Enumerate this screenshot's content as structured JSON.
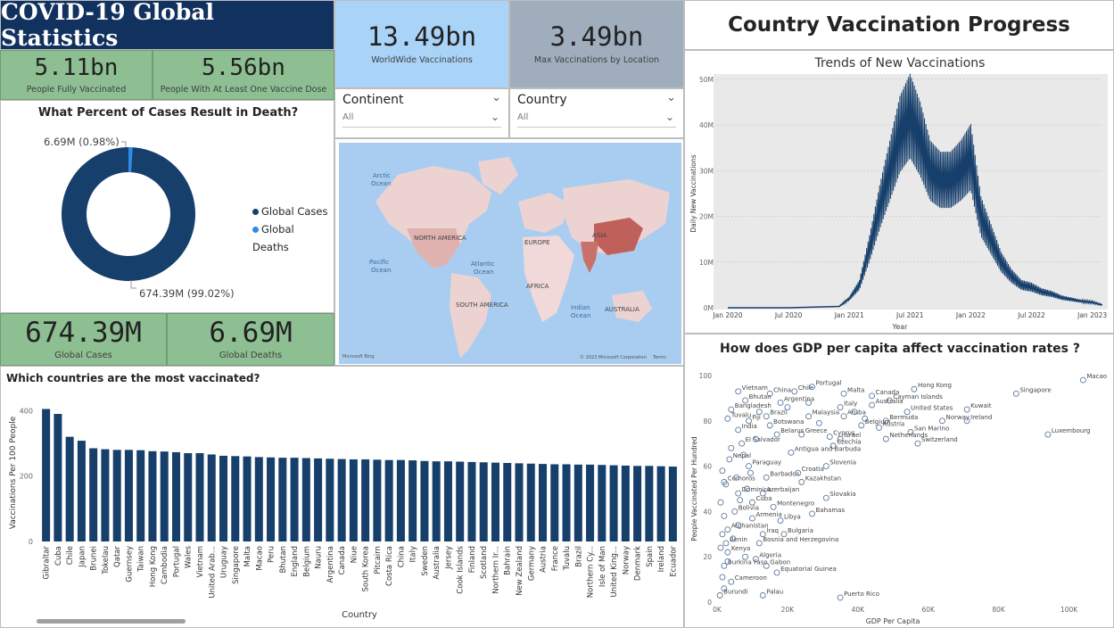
{
  "header": {
    "title": "COVID-19 Global Statistics"
  },
  "kpis": {
    "fully_vaccinated": {
      "value": "5.11bn",
      "label": "People Fully Vaccinated"
    },
    "one_dose": {
      "value": "5.56bn",
      "label": "People With At Least One Vaccine Dose"
    },
    "worldwide": {
      "value": "13.49bn",
      "label": "WorldWide Vaccinations"
    },
    "max_location": {
      "value": "3.49bn",
      "label": "Max Vaccinations by Location"
    },
    "global_cases": {
      "value": "674.39M",
      "label": "Global Cases"
    },
    "global_deaths": {
      "value": "6.69M",
      "label": "Global Deaths"
    }
  },
  "slicers": {
    "continent": {
      "title": "Continent",
      "value": "All"
    },
    "country": {
      "title": "Country",
      "value": "All"
    }
  },
  "donut": {
    "title": "What Percent of Cases Result in Death?",
    "deaths_label": "6.69M (0.98%)",
    "cases_label": "674.39M (99.02%)",
    "legend": [
      "Global Cases",
      "Global Deaths"
    ]
  },
  "map": {
    "labels": [
      "Arctic",
      "Ocean",
      "NORTH AMERICA",
      "EUROPE",
      "ASIA",
      "Pacific",
      "Ocean",
      "Atlantic",
      "Ocean",
      "AFRICA",
      "SOUTH AMERICA",
      "Indian",
      "Ocean",
      "AUSTRALIA"
    ],
    "attribution": "© 2023 Microsoft Corporation",
    "terms": "Terms",
    "brand": "Microsoft Bing"
  },
  "dashboard": {
    "title": "Country Vaccination Progress"
  },
  "colors": {
    "banner": "#11315f",
    "kpi_green": "#8dbf92",
    "kpi_blue": "#a9d3f7",
    "kpi_grey": "#9fadbd",
    "series": "#163f6b",
    "deaths": "#2f8ae6"
  },
  "chart_data": [
    {
      "type": "pie",
      "title": "What Percent of Cases Result in Death?",
      "categories": [
        "Global Cases",
        "Global Deaths"
      ],
      "values": [
        674.39,
        6.69
      ],
      "legend": "right"
    },
    {
      "type": "line",
      "title": "Trends of New Vaccinations",
      "xlabel": "Year",
      "ylabel": "Daily New Vaccinations",
      "x_ticks": [
        "Jan 2020",
        "Jul 2020",
        "Jan 2021",
        "Jul 2021",
        "Jan 2022",
        "Jul 2022",
        "Jan 2023"
      ],
      "y_ticks": [
        "0M",
        "10M",
        "20M",
        "30M",
        "40M",
        "50M"
      ],
      "ylim": [
        0,
        50
      ],
      "x": [
        "Jan 2020",
        "Jul 2020",
        "Dec 2020",
        "Jan 2021",
        "Feb 2021",
        "Mar 2021",
        "Apr 2021",
        "May 2021",
        "Jun 2021",
        "Jul 2021",
        "Aug 2021",
        "Sep 2021",
        "Oct 2021",
        "Nov 2021",
        "Dec 2021",
        "Jan 2022",
        "Feb 2022",
        "Mar 2022",
        "Apr 2022",
        "May 2022",
        "Jun 2022",
        "Jul 2022",
        "Aug 2022",
        "Sep 2022",
        "Oct 2022",
        "Nov 2022",
        "Dec 2022",
        "Jan 2023",
        "Feb 2023"
      ],
      "series": [
        {
          "values": [
            0,
            0,
            0.3,
            2,
            5,
            13,
            22,
            30,
            38,
            42,
            37,
            30,
            28,
            28,
            30,
            33,
            20,
            15,
            10,
            7,
            5,
            4.5,
            3.5,
            3,
            2.2,
            1.8,
            1.4,
            1.2,
            0.6
          ]
        }
      ],
      "grid": true
    },
    {
      "type": "bar",
      "title": "Which countries are the most vaccinated?",
      "xlabel": "Country",
      "ylabel": "Vaccinations Per 100 People",
      "y_ticks": [
        "0",
        "200",
        "400"
      ],
      "ylim": [
        0,
        420
      ],
      "categories": [
        "Gibraltar",
        "Cuba",
        "Chile",
        "Japan",
        "Brunei",
        "Tokelau",
        "Qatar",
        "Guernsey",
        "Taiwan",
        "Hong Kong",
        "Cambodia",
        "Portugal",
        "Wales",
        "Vietnam",
        "United Arab...",
        "Uruguay",
        "Singapore",
        "Malta",
        "Macao",
        "Peru",
        "Bhutan",
        "England",
        "Belgium",
        "Nauru",
        "Argentina",
        "Canada",
        "Niue",
        "South Korea",
        "Pitcairn",
        "Costa Rica",
        "China",
        "Italy",
        "Sweden",
        "Australia",
        "Jersey",
        "Cook Islands",
        "Finland",
        "Scotland",
        "Northern Ir...",
        "Bahrain",
        "New Zealand",
        "Germany",
        "Austria",
        "France",
        "Tuvalu",
        "Brazil",
        "Northern Cy...",
        "Isle of Man",
        "United King...",
        "Norway",
        "Denmark",
        "Spain",
        "Ireland",
        "Ecuador"
      ],
      "values": [
        405,
        390,
        320,
        308,
        285,
        282,
        280,
        280,
        279,
        276,
        275,
        273,
        270,
        270,
        266,
        262,
        261,
        260,
        258,
        257,
        256,
        256,
        255,
        254,
        253,
        252,
        251,
        251,
        250,
        249,
        249,
        248,
        246,
        245,
        245,
        244,
        243,
        242,
        241,
        240,
        239,
        238,
        237,
        236,
        236,
        235,
        235,
        234,
        233,
        232,
        231,
        231,
        230,
        229
      ]
    },
    {
      "type": "scatter",
      "title": "How does GDP per capita affect vaccination rates ?",
      "xlabel": "GDP Per Capita",
      "ylabel": "People Vaccinated Per Hundred",
      "xlim": [
        0,
        110000
      ],
      "ylim": [
        0,
        100
      ],
      "x_ticks": [
        "0K",
        "20K",
        "40K",
        "60K",
        "80K",
        "100K"
      ],
      "y_ticks": [
        "0",
        "20",
        "40",
        "60",
        "80",
        "100"
      ],
      "points": [
        {
          "label": "Vietnam",
          "x": 6000,
          "y": 93
        },
        {
          "label": "Bhutan",
          "x": 8000,
          "y": 89
        },
        {
          "label": "China",
          "x": 15000,
          "y": 92
        },
        {
          "label": "Chile",
          "x": 22000,
          "y": 93
        },
        {
          "label": "Portugal",
          "x": 27000,
          "y": 95
        },
        {
          "label": "Malta",
          "x": 36000,
          "y": 92
        },
        {
          "label": "Canada",
          "x": 44000,
          "y": 91
        },
        {
          "label": "Hong Kong",
          "x": 56000,
          "y": 94
        },
        {
          "label": "Macao",
          "x": 104000,
          "y": 98
        },
        {
          "label": "Argentina",
          "x": 18000,
          "y": 88
        },
        {
          "label": "Australia",
          "x": 44000,
          "y": 87
        },
        {
          "label": "Cayman Islands",
          "x": 49000,
          "y": 89
        },
        {
          "label": "Singapore",
          "x": 85000,
          "y": 92
        },
        {
          "label": "Bangladesh",
          "x": 4000,
          "y": 85
        },
        {
          "label": "Italy",
          "x": 35000,
          "y": 86
        },
        {
          "label": "United States",
          "x": 54000,
          "y": 84
        },
        {
          "label": "Kuwait",
          "x": 71000,
          "y": 85
        },
        {
          "label": "Brazil",
          "x": 14000,
          "y": 82
        },
        {
          "label": "Malaysia",
          "x": 26000,
          "y": 82
        },
        {
          "label": "Aruba",
          "x": 36000,
          "y": 82
        },
        {
          "label": "Bermuda",
          "x": 48000,
          "y": 80
        },
        {
          "label": "Norway",
          "x": 64000,
          "y": 80
        },
        {
          "label": "Ireland",
          "x": 71000,
          "y": 80
        },
        {
          "label": "Tuvalu",
          "x": 3000,
          "y": 81
        },
        {
          "label": "Fiji",
          "x": 9000,
          "y": 80
        },
        {
          "label": "Botswana",
          "x": 15000,
          "y": 78
        },
        {
          "label": "Belgium",
          "x": 41000,
          "y": 78
        },
        {
          "label": "India",
          "x": 6000,
          "y": 76
        },
        {
          "label": "Austria",
          "x": 46000,
          "y": 77
        },
        {
          "label": "San Marino",
          "x": 55000,
          "y": 75
        },
        {
          "label": "Luxembourg",
          "x": 94000,
          "y": 74
        },
        {
          "label": "Belarus",
          "x": 17000,
          "y": 74
        },
        {
          "label": "Greece",
          "x": 24000,
          "y": 74
        },
        {
          "label": "Cyprus",
          "x": 32000,
          "y": 73
        },
        {
          "label": "Israel",
          "x": 35000,
          "y": 72
        },
        {
          "label": "Netherlands",
          "x": 48000,
          "y": 72
        },
        {
          "label": "Switzerland",
          "x": 57000,
          "y": 70
        },
        {
          "label": "El Salvador",
          "x": 7000,
          "y": 70
        },
        {
          "label": "Czechia",
          "x": 33000,
          "y": 69
        },
        {
          "label": "Antigua and Barbuda",
          "x": 21000,
          "y": 66
        },
        {
          "label": "Nepal",
          "x": 3500,
          "y": 63
        },
        {
          "label": "Paraguay",
          "x": 9000,
          "y": 60
        },
        {
          "label": "Slovenia",
          "x": 31000,
          "y": 60
        },
        {
          "label": "Barbados",
          "x": 14000,
          "y": 55
        },
        {
          "label": "Croatia",
          "x": 23000,
          "y": 57
        },
        {
          "label": "Comoros",
          "x": 2000,
          "y": 53
        },
        {
          "label": "Kazakhstan",
          "x": 24000,
          "y": 53
        },
        {
          "label": "Azerbaijan",
          "x": 13000,
          "y": 48
        },
        {
          "label": "Dominica",
          "x": 6000,
          "y": 48
        },
        {
          "label": "Slovakia",
          "x": 31000,
          "y": 46
        },
        {
          "label": "Cuba",
          "x": 10000,
          "y": 44
        },
        {
          "label": "Montenegro",
          "x": 16000,
          "y": 42
        },
        {
          "label": "Bolivia",
          "x": 5000,
          "y": 40
        },
        {
          "label": "Bahamas",
          "x": 27000,
          "y": 39
        },
        {
          "label": "Armenia",
          "x": 10000,
          "y": 37
        },
        {
          "label": "Libya",
          "x": 18000,
          "y": 36
        },
        {
          "label": "Afghanistan",
          "x": 3000,
          "y": 32
        },
        {
          "label": "Iraq",
          "x": 13000,
          "y": 30
        },
        {
          "label": "Bulgaria",
          "x": 19000,
          "y": 30
        },
        {
          "label": "Benin",
          "x": 2500,
          "y": 26
        },
        {
          "label": "Bosnia and Herzegovina",
          "x": 12000,
          "y": 26
        },
        {
          "label": "Kenya",
          "x": 3000,
          "y": 22
        },
        {
          "label": "Algeria",
          "x": 11000,
          "y": 19
        },
        {
          "label": "Burkina Faso",
          "x": 2000,
          "y": 16
        },
        {
          "label": "Gabon",
          "x": 14000,
          "y": 16
        },
        {
          "label": "Equatorial Guinea",
          "x": 17000,
          "y": 13
        },
        {
          "label": "Cameroon",
          "x": 4000,
          "y": 9
        },
        {
          "label": "Burundi",
          "x": 800,
          "y": 3
        },
        {
          "label": "Palau",
          "x": 13000,
          "y": 3
        },
        {
          "label": "Puerto Rico",
          "x": 35000,
          "y": 2
        },
        {
          "label": "",
          "x": 1500,
          "y": 58
        },
        {
          "label": "",
          "x": 2500,
          "y": 52
        },
        {
          "label": "",
          "x": 1000,
          "y": 44
        },
        {
          "label": "",
          "x": 2000,
          "y": 38
        },
        {
          "label": "",
          "x": 1500,
          "y": 30
        },
        {
          "label": "",
          "x": 4500,
          "y": 28
        },
        {
          "label": "",
          "x": 1000,
          "y": 24
        },
        {
          "label": "",
          "x": 3000,
          "y": 18
        },
        {
          "label": "",
          "x": 1500,
          "y": 11
        },
        {
          "label": "",
          "x": 2000,
          "y": 6
        },
        {
          "label": "",
          "x": 7500,
          "y": 65
        },
        {
          "label": "",
          "x": 5500,
          "y": 55
        },
        {
          "label": "",
          "x": 8500,
          "y": 50
        },
        {
          "label": "",
          "x": 6500,
          "y": 45
        },
        {
          "label": "",
          "x": 12000,
          "y": 84
        },
        {
          "label": "",
          "x": 20000,
          "y": 86
        },
        {
          "label": "",
          "x": 26000,
          "y": 88
        },
        {
          "label": "",
          "x": 39000,
          "y": 84
        },
        {
          "label": "",
          "x": 42000,
          "y": 81
        },
        {
          "label": "",
          "x": 29000,
          "y": 79
        },
        {
          "label": "",
          "x": 11000,
          "y": 72
        },
        {
          "label": "",
          "x": 4000,
          "y": 68
        },
        {
          "label": "",
          "x": 9500,
          "y": 57
        },
        {
          "label": "",
          "x": 6000,
          "y": 34
        },
        {
          "label": "",
          "x": 8000,
          "y": 20
        }
      ]
    }
  ]
}
